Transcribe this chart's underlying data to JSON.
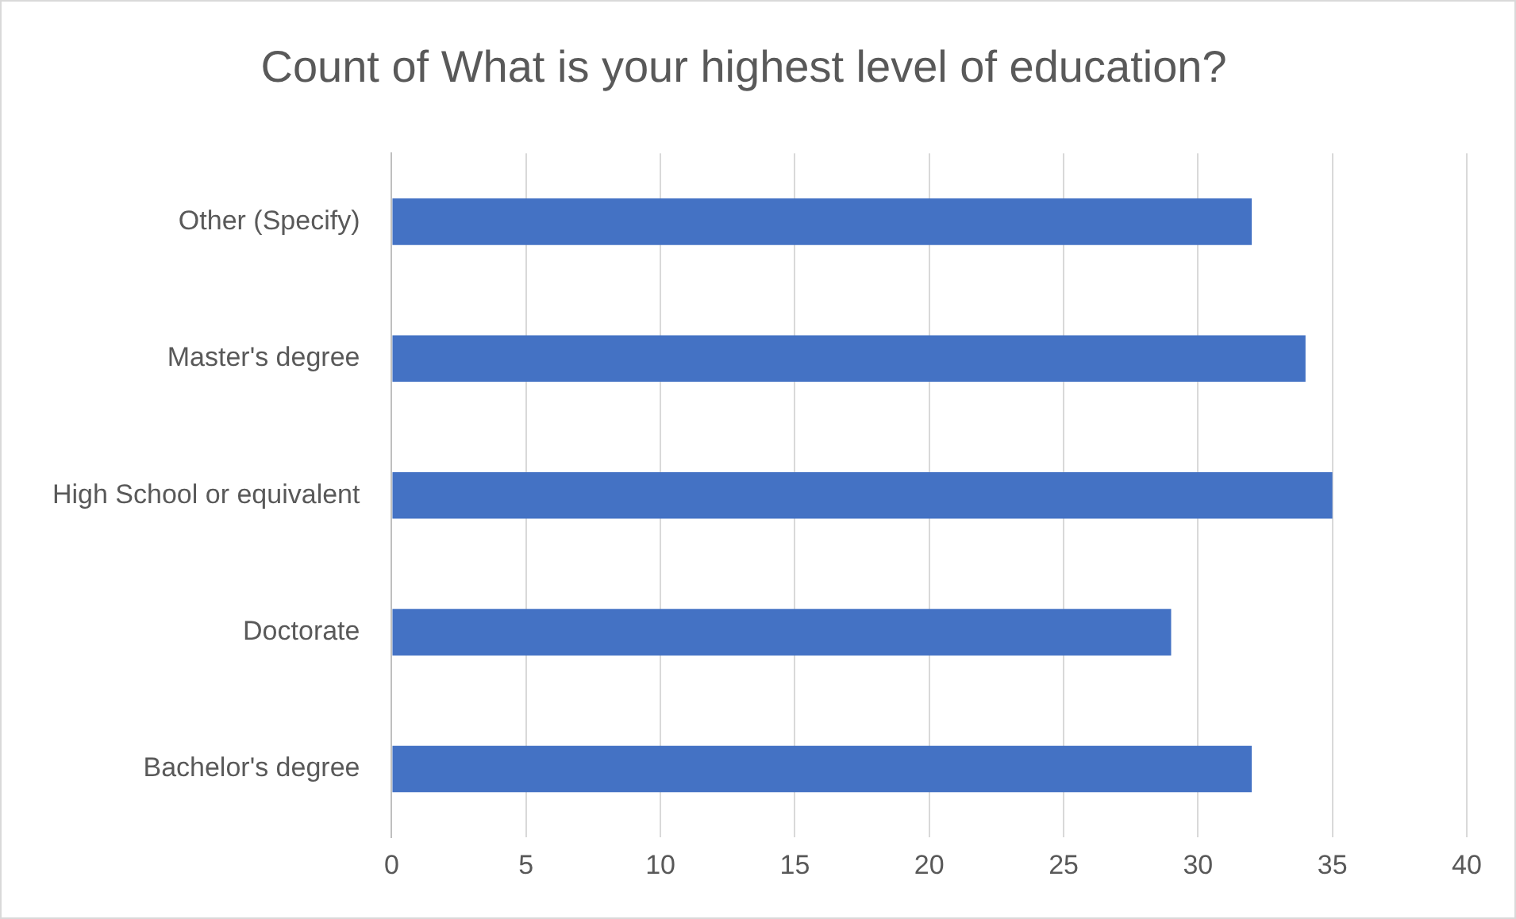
{
  "chart_data": {
    "type": "bar",
    "orientation": "horizontal",
    "title": "Count of What is your highest level of education?",
    "categories": [
      "Other (Specify)",
      "Master's degree",
      "High School or equivalent",
      "Doctorate",
      "Bachelor's degree"
    ],
    "values": [
      32,
      34,
      35,
      29,
      32
    ],
    "color": "#4472c4",
    "xlim": [
      0,
      40
    ],
    "xticks": [
      0,
      5,
      10,
      15,
      20,
      25,
      30,
      35,
      40
    ],
    "grid": "x",
    "legend": false
  }
}
